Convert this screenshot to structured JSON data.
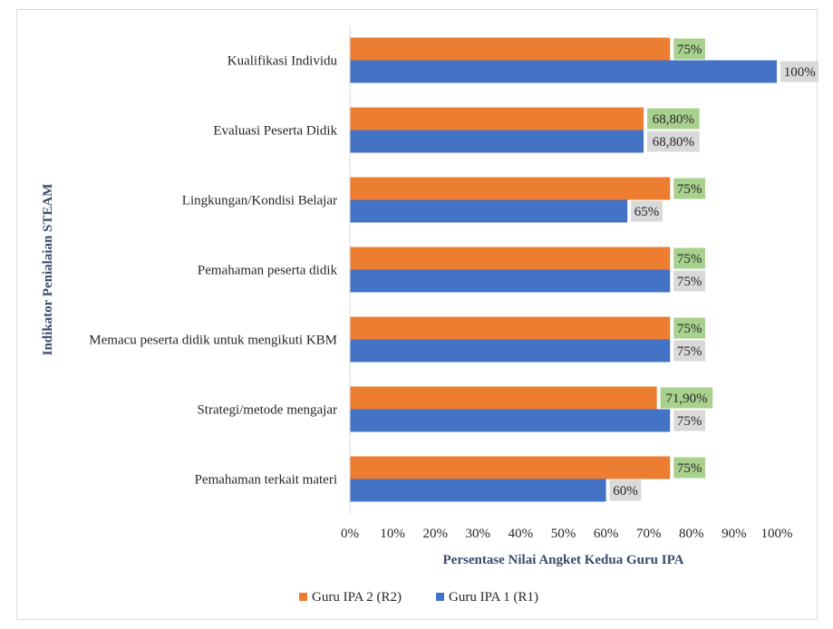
{
  "chart_data": {
    "type": "bar",
    "orientation": "horizontal",
    "categories": [
      "Kualifikasi Individu",
      "Evaluasi Peserta Didik",
      "Lingkungan/Kondisi Belajar",
      "Pemahaman peserta didik",
      "Memacu peserta didik untuk mengikuti KBM",
      "Strategi/metode mengajar",
      "Pemahaman terkait materi"
    ],
    "series": [
      {
        "name": "Guru IPA 2 (R2)",
        "color": "#ed7d31",
        "label_bg": "#a9d18e",
        "values": [
          75,
          68.8,
          75,
          75,
          75,
          71.9,
          75
        ],
        "labels": [
          "75%",
          "68,80%",
          "75%",
          "75%",
          "75%",
          "71,90%",
          "75%"
        ]
      },
      {
        "name": "Guru IPA 1 (R1)",
        "color": "#4472c4",
        "label_bg": "#d9d9d9",
        "values": [
          100,
          68.8,
          65,
          75,
          75,
          75,
          60
        ],
        "labels": [
          "100%",
          "68,80%",
          "65%",
          "75%",
          "75%",
          "75%",
          "60%"
        ]
      }
    ],
    "xlabel": "Persentase Nilai Angket Kedua Guru IPA",
    "ylabel": "Indikator Penialaian STEAM",
    "xlim": [
      0,
      100
    ],
    "xticks": [
      "0%",
      "10%",
      "20%",
      "30%",
      "40%",
      "50%",
      "60%",
      "70%",
      "80%",
      "90%",
      "100%"
    ],
    "grid": false,
    "legend_position": "bottom"
  }
}
